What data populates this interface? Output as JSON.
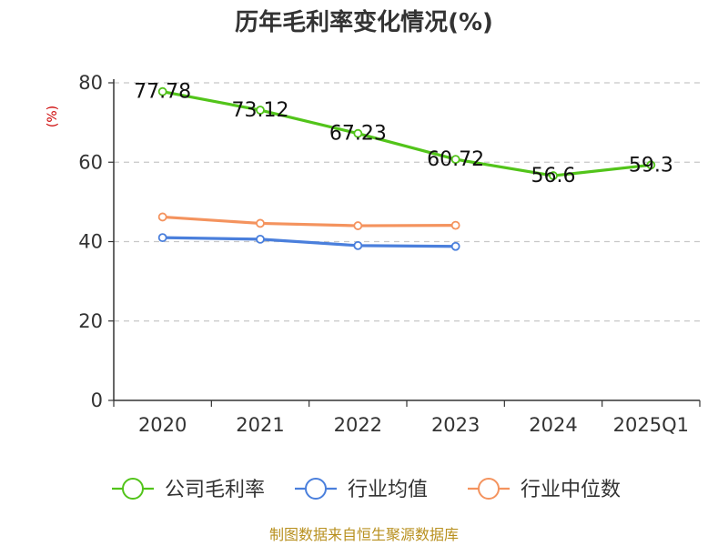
{
  "chart_data": {
    "type": "line",
    "title": "历年毛利率变化情况(%)",
    "ylabel": "(%)",
    "xlabel": "",
    "categories": [
      "2020",
      "2021",
      "2022",
      "2023",
      "2024",
      "2025Q1"
    ],
    "ylim": [
      0,
      80
    ],
    "yticks": [
      "0",
      "20",
      "40",
      "60",
      "80"
    ],
    "grid": true,
    "legend_position": "bottom",
    "series": [
      {
        "name": "公司毛利率",
        "color": "#52c41a",
        "values": [
          77.78,
          73.12,
          67.23,
          60.72,
          56.6,
          59.3
        ],
        "labels": [
          "77.78",
          "73.12",
          "67.23",
          "60.72",
          "56.6",
          "59.3"
        ],
        "show_labels": true
      },
      {
        "name": "行业均值",
        "color": "#4a7fdc",
        "values": [
          41.0,
          40.6,
          39.0,
          38.8,
          null,
          null
        ],
        "show_labels": false
      },
      {
        "name": "行业中位数",
        "color": "#f4935e",
        "values": [
          46.2,
          44.6,
          44.0,
          44.1,
          null,
          null
        ],
        "show_labels": false
      }
    ],
    "source": "制图数据来自恒生聚源数据库"
  }
}
